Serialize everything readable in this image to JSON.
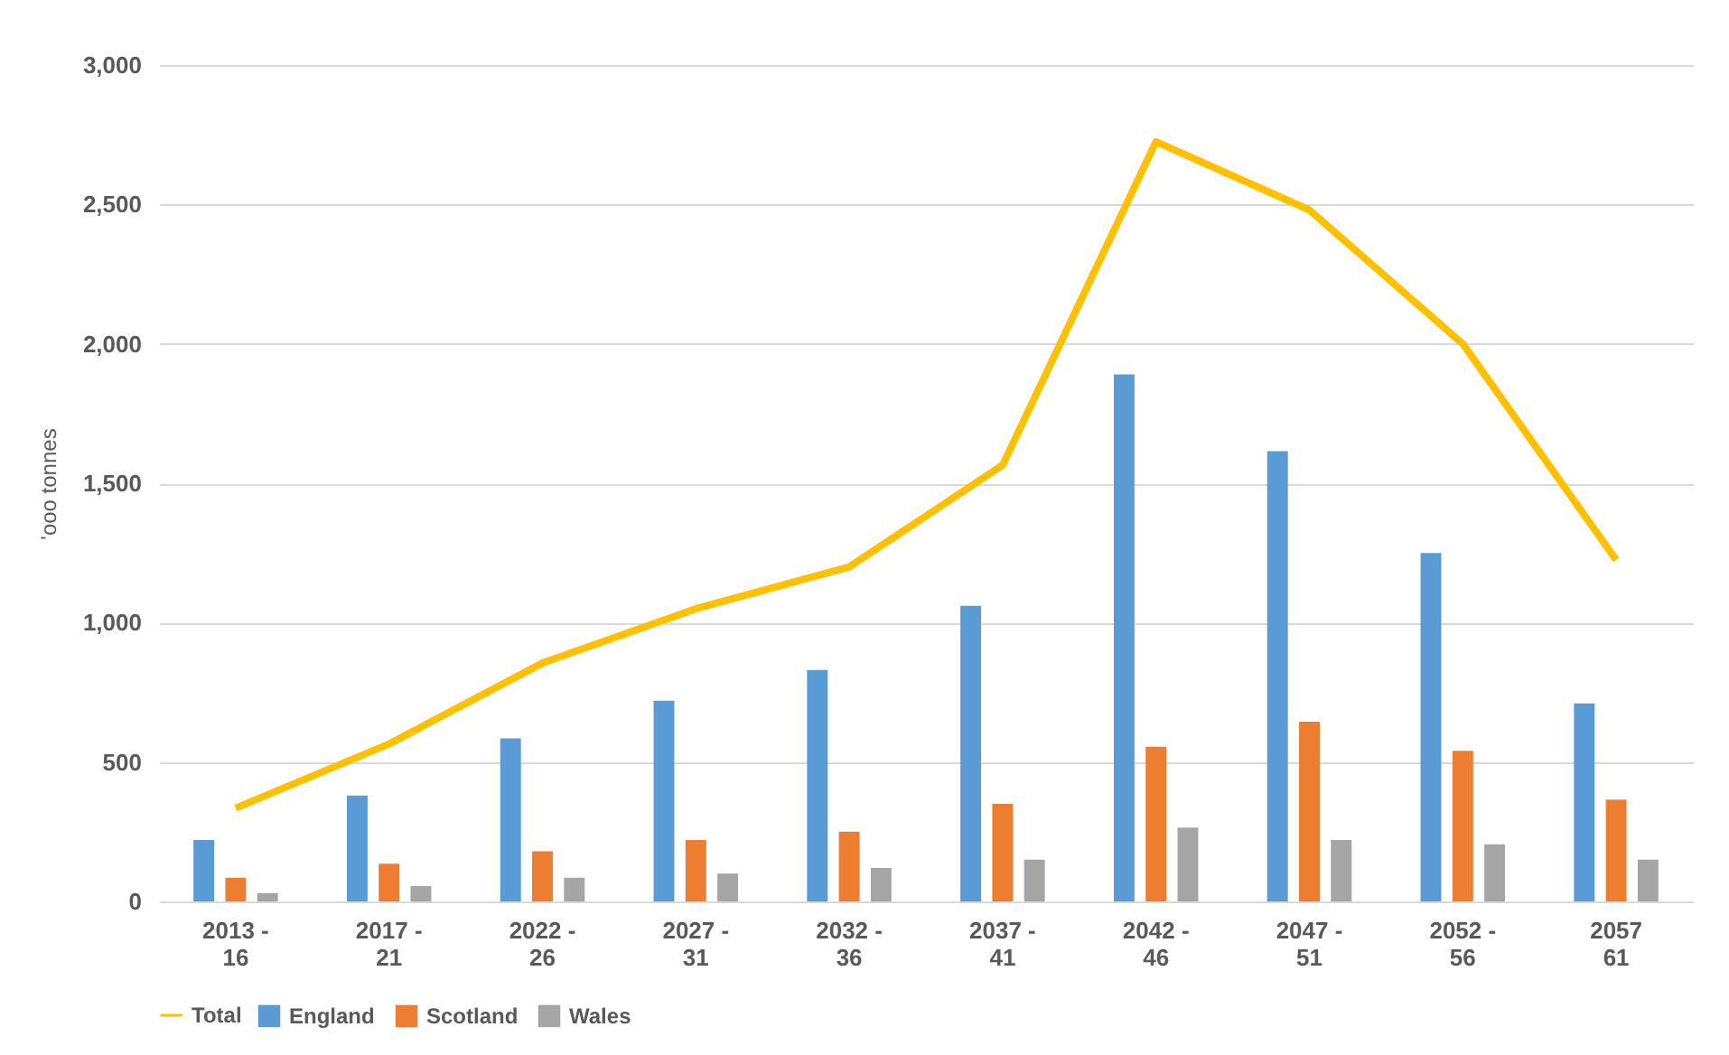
{
  "chart_data": {
    "type": "bar",
    "ylabel": "'ooo tonnes",
    "categories": [
      "2013 - 16",
      "2017 - 21",
      "2022 - 26",
      "2027 - 31",
      "2032 - 36",
      "2037 - 41",
      "2042 - 46",
      "2047 - 51",
      "2052 - 56",
      "2057 61"
    ],
    "series": [
      {
        "name": "England",
        "color": "#5b9bd5",
        "values": [
          220,
          380,
          585,
          720,
          830,
          1060,
          1890,
          1615,
          1250,
          710
        ]
      },
      {
        "name": "Scotland",
        "color": "#ed7d31",
        "values": [
          85,
          135,
          180,
          220,
          250,
          350,
          555,
          645,
          540,
          365
        ]
      },
      {
        "name": "Wales",
        "color": "#a5a5a5",
        "values": [
          30,
          55,
          85,
          100,
          120,
          150,
          265,
          220,
          205,
          150
        ]
      },
      {
        "name": "Total",
        "color": "#ffc000",
        "type": "line",
        "values": [
          335,
          565,
          855,
          1050,
          1200,
          1565,
          2725,
          2480,
          2000,
          1225
        ]
      }
    ],
    "ylim": [
      0,
      3000
    ],
    "yticks": [
      0,
      500,
      {
        "value": 1000,
        "label": "1,000"
      },
      {
        "value": 1500,
        "label": "1,500"
      },
      {
        "value": 2000,
        "label": "2,000"
      },
      {
        "value": 2500,
        "label": "2,500"
      },
      {
        "value": 3000,
        "label": "3,000"
      }
    ],
    "grid": "y",
    "legend": "bottom"
  }
}
